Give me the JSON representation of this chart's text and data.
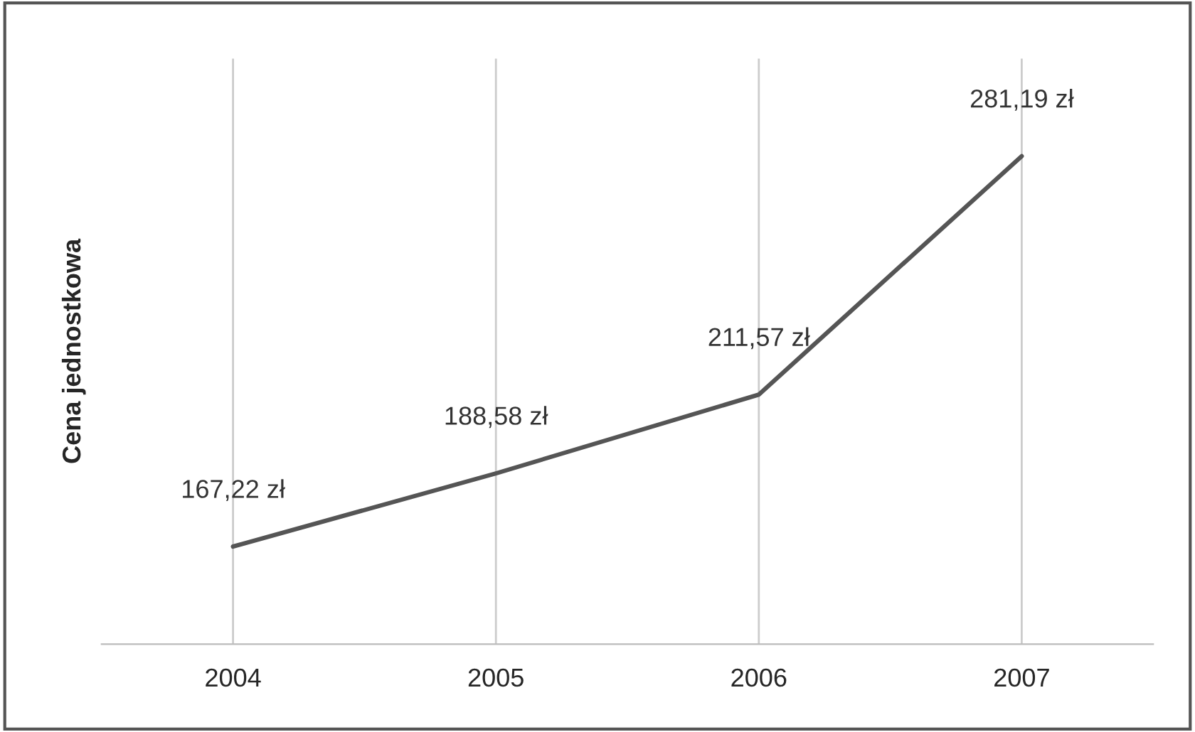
{
  "chart_data": {
    "type": "line",
    "ylabel": "Cena jednostkowa",
    "categories": [
      "2004",
      "2005",
      "2006",
      "2007"
    ],
    "series": [
      {
        "color": "#555555",
        "values": [
          167.22,
          188.58,
          211.57,
          281.19
        ],
        "value_labels": [
          "167,22 zł",
          "188,58 zł",
          "211,57 zł",
          "281,19 zł"
        ]
      }
    ],
    "grid": "x",
    "tick_labels": "x",
    "marker": "none",
    "line_style": "solid"
  }
}
